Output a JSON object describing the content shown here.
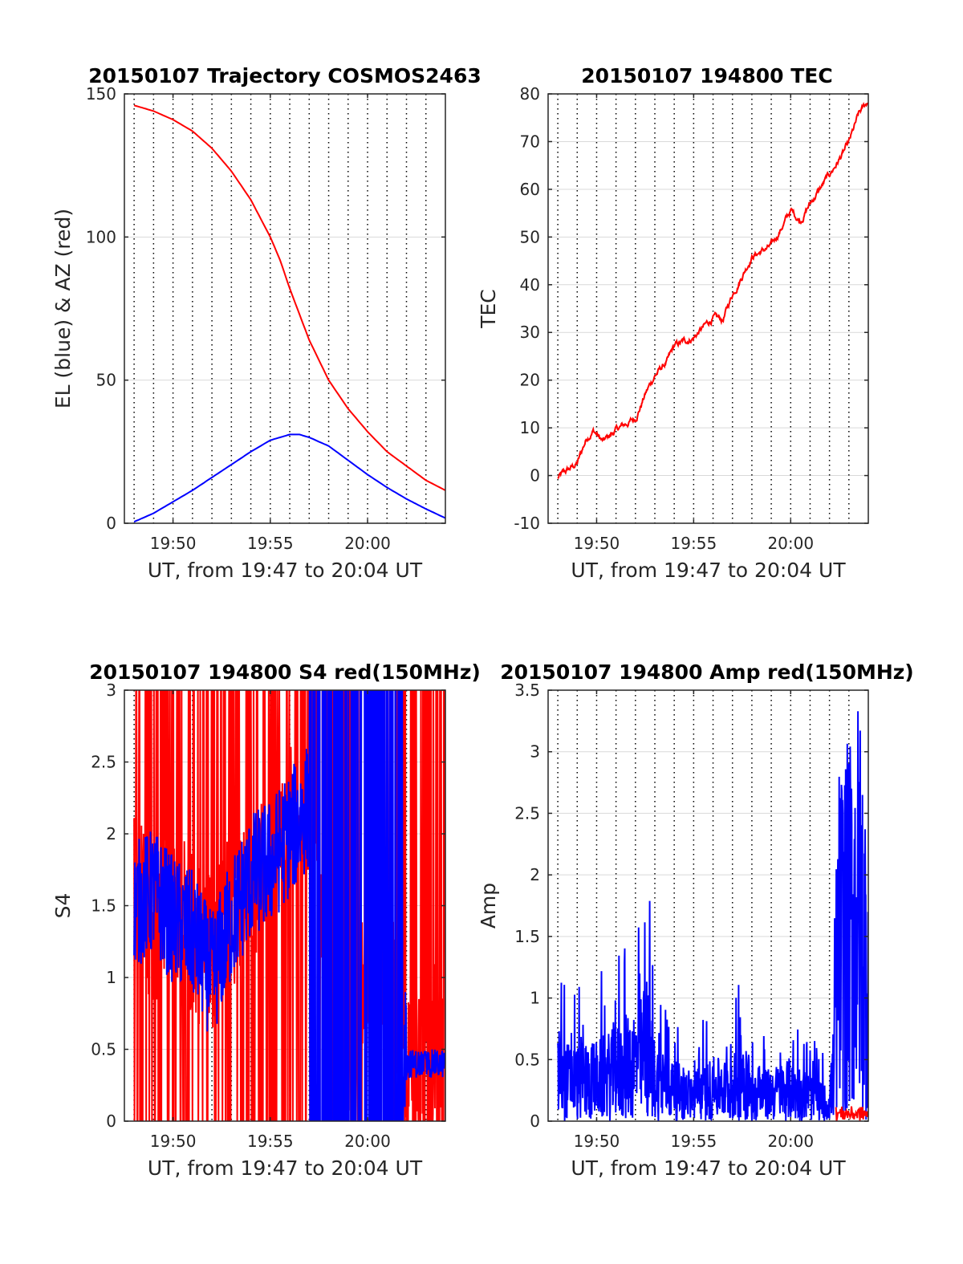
{
  "figure": {
    "background": "#ffffff"
  },
  "colors": {
    "red": "#ff0000",
    "blue": "#0000ff",
    "axis": "#262626",
    "grid": "#d9d9d9",
    "vgrid": "#000000"
  },
  "chart_data": [
    {
      "type": "line",
      "title": "20150107 Trajectory COSMOS2463",
      "xlabel": "UT, from 19:47 to 20:04 UT",
      "ylabel": "EL (blue) & AZ (red)",
      "xlim": [
        "19:47:30",
        "20:04:00"
      ],
      "ylim": [
        0,
        150
      ],
      "xticks": [
        "19:50",
        "19:55",
        "20:00"
      ],
      "yticks": [
        0,
        50,
        100,
        150
      ],
      "grid": true,
      "series": [
        {
          "color": "#ff0000",
          "x": [
            "19:48:00",
            "19:49:00",
            "19:50:00",
            "19:51:00",
            "19:52:00",
            "19:53:00",
            "19:54:00",
            "19:55:00",
            "19:55:30",
            "19:56:00",
            "19:56:30",
            "19:57:00",
            "19:58:00",
            "19:59:00",
            "20:00:00",
            "20:01:00",
            "20:02:00",
            "20:03:00",
            "20:04:00"
          ],
          "values": [
            146,
            144,
            141,
            137,
            131,
            123,
            113,
            100,
            92,
            82,
            73,
            64,
            50,
            40,
            32,
            25,
            20,
            15,
            11.5
          ]
        },
        {
          "color": "#0000ff",
          "x": [
            "19:48:00",
            "19:49:00",
            "19:50:00",
            "19:51:00",
            "19:52:00",
            "19:53:00",
            "19:54:00",
            "19:55:00",
            "19:56:00",
            "19:56:30",
            "19:57:00",
            "19:58:00",
            "19:59:00",
            "20:00:00",
            "20:01:00",
            "20:02:00",
            "20:03:00",
            "20:04:00"
          ],
          "values": [
            0.5,
            3.5,
            7.5,
            11.5,
            16,
            20.5,
            25,
            29,
            31,
            31,
            30,
            27,
            22,
            17,
            12.5,
            8.5,
            5,
            1.8
          ]
        }
      ]
    },
    {
      "type": "line",
      "title": "20150107 194800 TEC",
      "xlabel": "UT, from 19:47 to 20:04 UT",
      "ylabel": "TEC",
      "xlim": [
        "19:47:30",
        "20:04:00"
      ],
      "ylim": [
        -10,
        80
      ],
      "xticks": [
        "19:50",
        "19:55",
        "20:00"
      ],
      "yticks": [
        -10,
        0,
        10,
        20,
        30,
        40,
        50,
        60,
        70,
        80
      ],
      "grid": true,
      "series": [
        {
          "color": "#ff0000",
          "x": [
            "19:48:00",
            "19:48:30",
            "19:49:00",
            "19:49:30",
            "19:49:50",
            "19:50:20",
            "19:51:00",
            "19:52:00",
            "19:52:30",
            "19:53:00",
            "19:53:40",
            "19:54:00",
            "19:55:00",
            "19:56:00",
            "19:56:30",
            "19:57:00",
            "19:58:00",
            "19:59:00",
            "19:59:40",
            "20:00:00",
            "20:00:30",
            "20:01:00",
            "20:02:00",
            "20:03:00",
            "20:03:30",
            "20:04:00"
          ],
          "values": [
            -0.5,
            1,
            2.5,
            8,
            9.5,
            7,
            9.5,
            12,
            17,
            21,
            24,
            27,
            29,
            33,
            32.5,
            38,
            46,
            48,
            53,
            55.5,
            53.5,
            57,
            63,
            69.5,
            75.5,
            78.5
          ]
        }
      ]
    },
    {
      "type": "line",
      "title": "20150107 194800 S4 red(150MHz)",
      "xlabel": "UT, from 19:47 to 20:04 UT",
      "ylabel": "S4",
      "xlim": [
        "19:47:30",
        "20:04:00"
      ],
      "ylim": [
        0,
        3
      ],
      "xticks": [
        "19:50",
        "19:55",
        "20:00"
      ],
      "yticks": [
        0,
        0.5,
        1,
        1.5,
        2,
        2.5,
        3
      ],
      "grid": true,
      "series": [
        {
          "color": "#ff0000",
          "x": [
            "19:48:00",
            "19:49:00",
            "19:50:00",
            "19:51:00",
            "19:52:00",
            "19:53:00",
            "19:54:00",
            "19:55:00",
            "19:56:00",
            "19:57:00",
            "19:58:00",
            "19:59:00",
            "20:00:00",
            "20:01:00",
            "20:02:00",
            "20:03:00",
            "20:04:00"
          ],
          "values": [
            1.6,
            1.4,
            1.5,
            1.3,
            1.2,
            1.5,
            1.7,
            1.9,
            2.0,
            2.2,
            0.8,
            0.6,
            1.0,
            1.3,
            0.5,
            0.6,
            0.5
          ]
        },
        {
          "color": "#0000ff",
          "x": [
            "19:48:00",
            "19:49:00",
            "19:50:00",
            "19:51:00",
            "19:52:00",
            "19:53:00",
            "19:54:00",
            "19:55:00",
            "19:56:00",
            "19:57:00",
            "19:58:00",
            "19:59:00",
            "20:00:00",
            "20:01:00",
            "20:02:00",
            "20:03:00",
            "20:04:00"
          ],
          "values": [
            1.5,
            1.6,
            1.4,
            1.3,
            1.0,
            1.4,
            1.7,
            1.8,
            2.0,
            2.2,
            1.2,
            1.5,
            1.5,
            1.6,
            0.4,
            0.4,
            0.4
          ]
        }
      ]
    },
    {
      "type": "line",
      "title": "20150107 194800 Amp red(150MHz)",
      "xlabel": "UT, from 19:47 to 20:04 UT",
      "ylabel": "Amp",
      "xlim": [
        "19:47:30",
        "20:04:00"
      ],
      "ylim": [
        0,
        3.5
      ],
      "xticks": [
        "19:50",
        "19:55",
        "20:00"
      ],
      "yticks": [
        0,
        0.5,
        1,
        1.5,
        2,
        2.5,
        3,
        3.5
      ],
      "grid": true,
      "series": [
        {
          "color": "#0000ff",
          "x": [
            "19:48:00",
            "19:49:00",
            "19:50:00",
            "19:51:00",
            "19:52:00",
            "19:52:40",
            "19:53:00",
            "19:54:00",
            "19:55:00",
            "19:56:00",
            "19:57:00",
            "19:57:30",
            "19:58:00",
            "19:59:00",
            "20:00:00",
            "20:01:00",
            "20:02:00",
            "20:02:30",
            "20:03:00",
            "20:03:30",
            "20:04:00"
          ],
          "values": [
            1.2,
            1.15,
            1.2,
            1.4,
            1.75,
            2.0,
            1.2,
            0.9,
            0.75,
            0.95,
            0.9,
            1.45,
            0.7,
            0.8,
            0.95,
            0.7,
            0.5,
            2.9,
            3.1,
            3.5,
            2.5
          ]
        }
      ]
    }
  ]
}
